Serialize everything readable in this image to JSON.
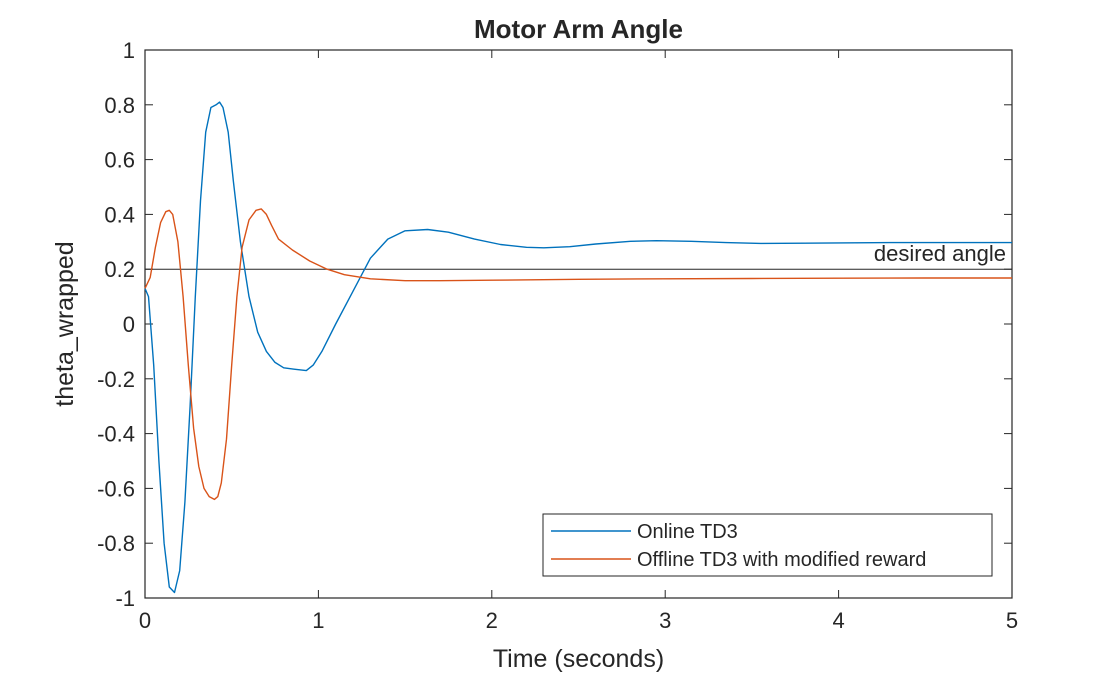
{
  "chart_data": {
    "type": "line",
    "title": "Motor Arm Angle",
    "xlabel": "Time (seconds)",
    "ylabel": "theta_wrapped",
    "xlim": [
      0,
      5
    ],
    "ylim": [
      -1,
      1
    ],
    "xticks": [
      0,
      1,
      2,
      3,
      4,
      5
    ],
    "xtick_labels": [
      "0",
      "1",
      "2",
      "3",
      "4",
      "5"
    ],
    "yticks": [
      -1,
      -0.8,
      -0.6,
      -0.4,
      -0.2,
      0,
      0.2,
      0.4,
      0.6,
      0.8,
      1
    ],
    "ytick_labels": [
      "-1",
      "-0.8",
      "-0.6",
      "-0.4",
      "-0.2",
      "0",
      "0.2",
      "0.4",
      "0.6",
      "0.8",
      "1"
    ],
    "grid": false,
    "legend_position": "bottom-right",
    "series": [
      {
        "name": "Online TD3",
        "color": "#0072BD",
        "x": [
          0,
          0.02,
          0.05,
          0.08,
          0.11,
          0.14,
          0.17,
          0.2,
          0.23,
          0.26,
          0.29,
          0.32,
          0.35,
          0.38,
          0.41,
          0.43,
          0.45,
          0.48,
          0.51,
          0.55,
          0.6,
          0.65,
          0.7,
          0.75,
          0.8,
          0.86,
          0.93,
          0.97,
          1.02,
          1.1,
          1.2,
          1.3,
          1.4,
          1.5,
          1.63,
          1.75,
          1.9,
          2.05,
          2.2,
          2.3,
          2.45,
          2.6,
          2.8,
          2.95,
          3.15,
          3.35,
          3.55,
          3.8,
          4.0,
          4.3,
          4.6,
          5.0
        ],
        "y": [
          0.13,
          0.1,
          -0.15,
          -0.5,
          -0.8,
          -0.96,
          -0.98,
          -0.9,
          -0.65,
          -0.3,
          0.1,
          0.45,
          0.7,
          0.79,
          0.8,
          0.81,
          0.79,
          0.7,
          0.52,
          0.3,
          0.1,
          -0.03,
          -0.1,
          -0.14,
          -0.16,
          -0.165,
          -0.17,
          -0.15,
          -0.1,
          0.0,
          0.12,
          0.24,
          0.31,
          0.34,
          0.345,
          0.335,
          0.31,
          0.29,
          0.28,
          0.278,
          0.282,
          0.292,
          0.302,
          0.304,
          0.302,
          0.297,
          0.294,
          0.295,
          0.296,
          0.297,
          0.297,
          0.297
        ]
      },
      {
        "name": "Offline TD3 with modified reward",
        "color": "#D95319",
        "x": [
          0,
          0.03,
          0.06,
          0.09,
          0.12,
          0.14,
          0.16,
          0.19,
          0.22,
          0.25,
          0.28,
          0.31,
          0.34,
          0.37,
          0.4,
          0.42,
          0.44,
          0.47,
          0.5,
          0.53,
          0.56,
          0.6,
          0.64,
          0.67,
          0.7,
          0.73,
          0.77,
          0.85,
          0.95,
          1.05,
          1.15,
          1.3,
          1.5,
          1.7,
          2.0,
          2.5,
          3.0,
          3.5,
          4.0,
          4.5,
          5.0
        ],
        "y": [
          0.13,
          0.17,
          0.28,
          0.37,
          0.41,
          0.415,
          0.4,
          0.3,
          0.1,
          -0.15,
          -0.38,
          -0.52,
          -0.6,
          -0.63,
          -0.64,
          -0.63,
          -0.58,
          -0.42,
          -0.15,
          0.1,
          0.28,
          0.38,
          0.415,
          0.42,
          0.4,
          0.36,
          0.31,
          0.27,
          0.23,
          0.2,
          0.18,
          0.165,
          0.158,
          0.158,
          0.16,
          0.163,
          0.165,
          0.166,
          0.167,
          0.168,
          0.168
        ]
      }
    ],
    "reference_line": {
      "y": 0.2,
      "color": "#262626"
    },
    "annotations": [
      {
        "text": "desired angle",
        "x": 5,
        "y": 0.2
      }
    ]
  }
}
